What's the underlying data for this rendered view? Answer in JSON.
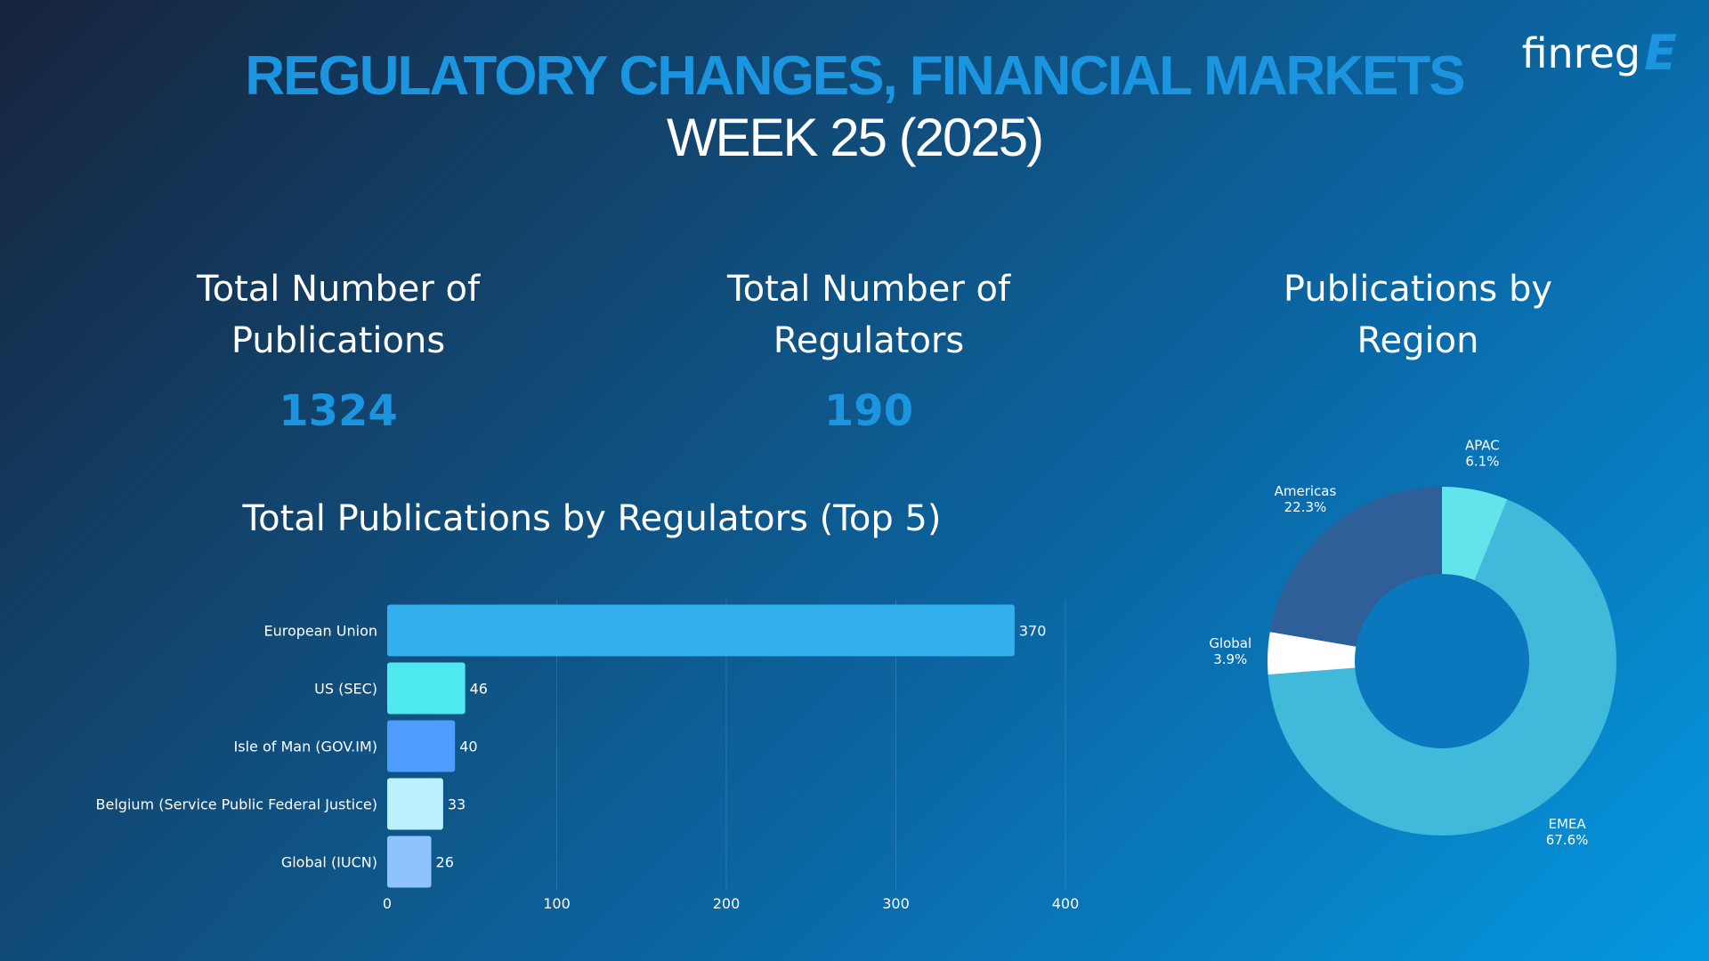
{
  "header": {
    "title": "REGULATORY CHANGES, FINANCIAL MARKETS",
    "subtitle": "WEEK 25 (2025)"
  },
  "logo": {
    "text": "finreg",
    "mark": "E"
  },
  "kpis": {
    "publications": {
      "label_line1": "Total Number of",
      "label_line2": "Publications",
      "value": "1324"
    },
    "regulators": {
      "label_line1": "Total Number of",
      "label_line2": "Regulators",
      "value": "190"
    }
  },
  "region_section": {
    "title_line1": "Publications by",
    "title_line2": "Region"
  },
  "colors": {
    "title_blue": "#1b95e0",
    "bar_colors": [
      "#33b0ee",
      "#4ee8ef",
      "#4f9cff",
      "#bcf0ff",
      "#8fc3ff"
    ],
    "pie_colors": [
      "#62e4ea",
      "#41b9da",
      "#ffffff",
      "#2e5f99"
    ],
    "donut_hole": "#0b78bd"
  },
  "chart_data": [
    {
      "type": "bar",
      "orientation": "horizontal",
      "title": "Total Publications by Regulators (Top 5)",
      "categories": [
        "European Union",
        "US (SEC)",
        "Isle of Man (GOV.IM)",
        "Belgium (Service Public Federal Justice)",
        "Global (IUCN)"
      ],
      "values": [
        370,
        46,
        40,
        33,
        26
      ],
      "value_labels": [
        "370",
        "46",
        "40",
        "33",
        "26"
      ],
      "xlim": [
        0,
        400
      ],
      "xticks": [
        0,
        100,
        200,
        300,
        400
      ],
      "xtick_labels": [
        "0",
        "100",
        "200",
        "300",
        "400"
      ],
      "grid": "vertical"
    },
    {
      "type": "pie",
      "variant": "donut",
      "title": "Publications by Region",
      "labels": [
        "APAC",
        "EMEA",
        "Global",
        "Americas"
      ],
      "values": [
        6.1,
        67.6,
        3.9,
        22.3
      ],
      "value_labels": [
        "6.1%",
        "67.6%",
        "3.9%",
        "22.3%"
      ]
    }
  ]
}
